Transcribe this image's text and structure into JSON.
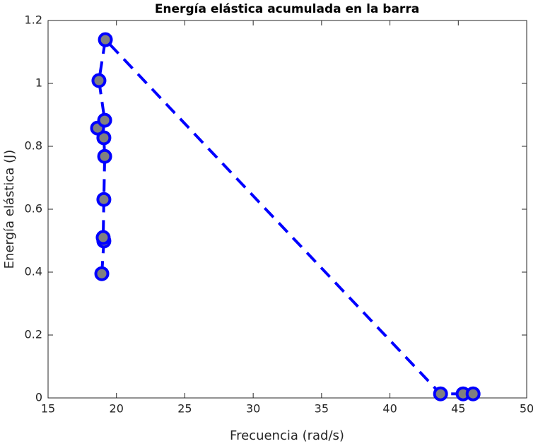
{
  "chart_data": {
    "type": "line",
    "title": "Energía elástica acumulada en la barra",
    "xlabel": "Frecuencia (rad/s)",
    "ylabel": "Energía elástica (J)",
    "series": [
      {
        "color": "#0000ff",
        "marker_fill": "#808080",
        "line_style": "dashed",
        "x": [
          18.93,
          19.08,
          19.03,
          19.08,
          19.14,
          19.08,
          18.62,
          19.14,
          18.72,
          19.19,
          43.7,
          45.35,
          46.08
        ],
        "values": [
          0.395,
          0.499,
          0.51,
          0.631,
          0.768,
          0.827,
          0.858,
          0.883,
          1.009,
          1.139,
          0.013,
          0.013,
          0.013
        ]
      }
    ],
    "xlim": [
      15,
      50
    ],
    "xticks": [
      15,
      20,
      25,
      30,
      35,
      40,
      45,
      50
    ],
    "ylim": [
      0,
      1.2
    ],
    "yticks": [
      0,
      0.2,
      0.4,
      0.6,
      0.8,
      1,
      1.2
    ],
    "grid": false,
    "box": true
  }
}
